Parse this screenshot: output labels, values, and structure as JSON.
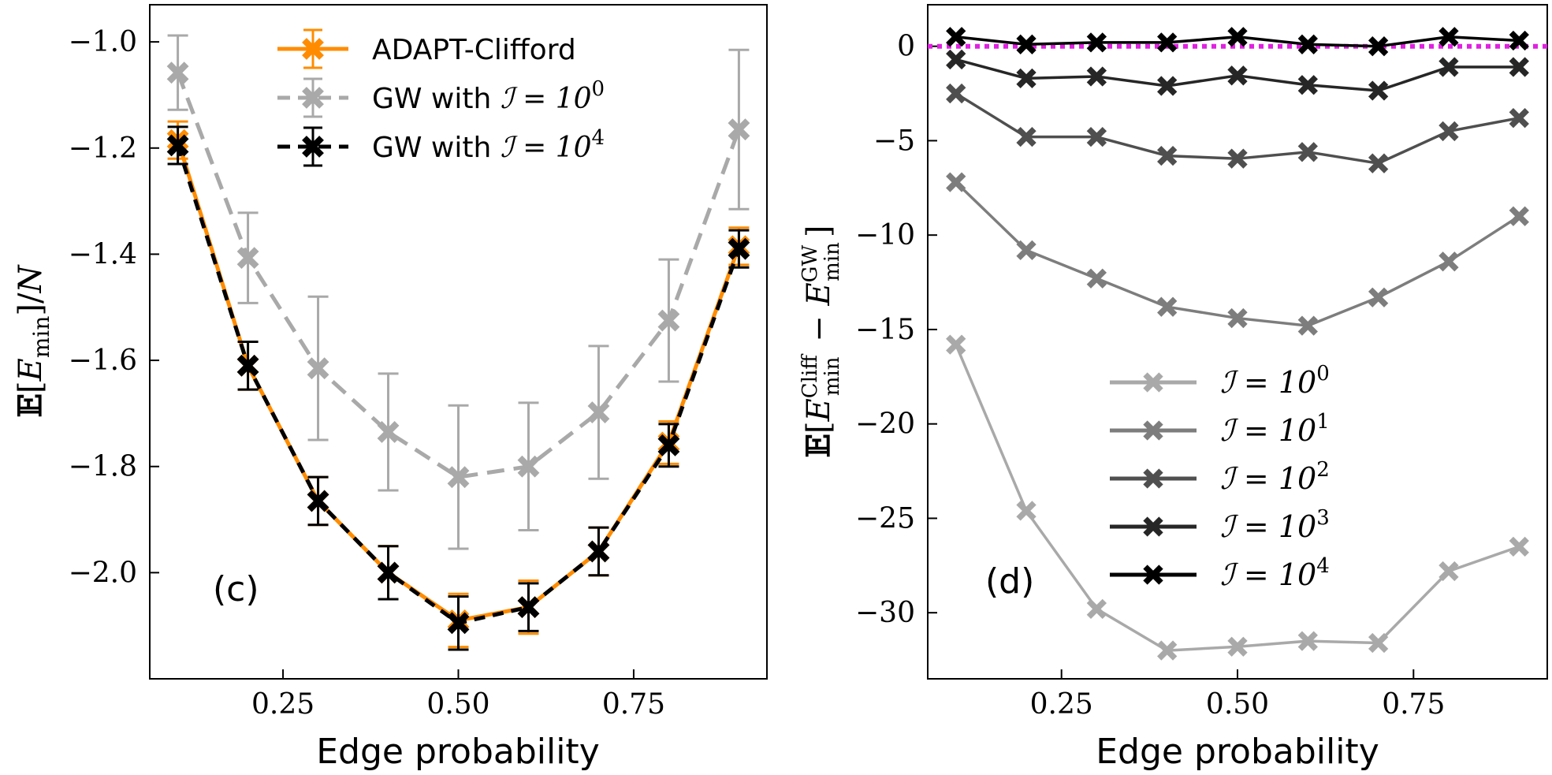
{
  "chart_data": [
    {
      "panel": "(c)",
      "type": "line",
      "xlabel": "Edge probability",
      "ylabel": "𝔼[E_min]/N",
      "xlim": [
        0.06,
        0.94
      ],
      "ylim": [
        -2.2,
        -0.93
      ],
      "xticks": [
        0.25,
        0.5,
        0.75
      ],
      "xtick_labels": [
        "0.25",
        "0.50",
        "0.75"
      ],
      "yticks": [
        -1.0,
        -1.2,
        -1.4,
        -1.6,
        -1.8,
        -2.0
      ],
      "ytick_labels": [
        "−1.0",
        "−1.2",
        "−1.4",
        "−1.6",
        "−1.8",
        "−2.0"
      ],
      "x": [
        0.1,
        0.2,
        0.3,
        0.4,
        0.5,
        0.6,
        0.7,
        0.8,
        0.9
      ],
      "legend_position": "top-center",
      "series": [
        {
          "name": "ADAPT-Clifford",
          "color": "#ff8c00",
          "style": "solid",
          "values": [
            -1.185,
            -1.61,
            -1.865,
            -2.0,
            -2.09,
            -2.065,
            -1.96,
            -1.755,
            -1.385
          ],
          "errors": [
            0.035,
            0.045,
            0.045,
            0.05,
            0.05,
            0.05,
            0.045,
            0.04,
            0.035
          ]
        },
        {
          "name": "GW with ℐ = 10⁰",
          "name_prefix": "GW with ",
          "name_math": "ℐ = 10",
          "name_sup": "0",
          "color": "#a9a9a9",
          "style": "dashed",
          "values": [
            -1.058,
            -1.407,
            -1.615,
            -1.735,
            -1.82,
            -1.8,
            -1.698,
            -1.525,
            -1.165
          ],
          "errors": [
            0.07,
            0.085,
            0.135,
            0.11,
            0.135,
            0.12,
            0.125,
            0.115,
            0.15
          ]
        },
        {
          "name": "GW with ℐ = 10⁴",
          "name_prefix": "GW with ",
          "name_math": "ℐ = 10",
          "name_sup": "4",
          "color": "#000000",
          "style": "dashed",
          "values": [
            -1.195,
            -1.61,
            -1.865,
            -2.0,
            -2.095,
            -2.065,
            -1.96,
            -1.76,
            -1.39
          ],
          "errors": [
            0.035,
            0.045,
            0.045,
            0.05,
            0.05,
            0.045,
            0.045,
            0.04,
            0.035
          ]
        }
      ]
    },
    {
      "panel": "(d)",
      "type": "line",
      "xlabel": "Edge probability",
      "ylabel": "𝔼[E_min^Cliff − E_min^GW]",
      "xlim": [
        0.06,
        0.94
      ],
      "ylim": [
        -33.5,
        2.2
      ],
      "xticks": [
        0.25,
        0.5,
        0.75
      ],
      "xtick_labels": [
        "0.25",
        "0.50",
        "0.75"
      ],
      "yticks": [
        0,
        -5,
        -10,
        -15,
        -20,
        -25,
        -30
      ],
      "ytick_labels": [
        "0",
        "−5",
        "−10",
        "−15",
        "−20",
        "−25",
        "−30"
      ],
      "reference_line": {
        "y": 0,
        "color": "#e020e0",
        "style": "dotted"
      },
      "x": [
        0.1,
        0.2,
        0.3,
        0.4,
        0.5,
        0.6,
        0.7,
        0.8,
        0.9
      ],
      "legend_position": "lower-center",
      "series": [
        {
          "name": "ℐ = 10⁰",
          "name_math": "ℐ = 10",
          "name_sup": "0",
          "color": "#a9a9a9",
          "values": [
            -15.8,
            -24.6,
            -29.8,
            -32.0,
            -31.8,
            -31.5,
            -31.6,
            -27.8,
            -26.5
          ]
        },
        {
          "name": "ℐ = 10¹",
          "name_math": "ℐ = 10",
          "name_sup": "1",
          "color": "#7d7d7d",
          "values": [
            -7.2,
            -10.8,
            -12.3,
            -13.8,
            -14.4,
            -14.8,
            -13.3,
            -11.4,
            -9.0
          ]
        },
        {
          "name": "ℐ = 10²",
          "name_math": "ℐ = 10",
          "name_sup": "2",
          "color": "#4f4f4f",
          "values": [
            -2.5,
            -4.8,
            -4.8,
            -5.8,
            -5.95,
            -5.6,
            -6.2,
            -4.5,
            -3.8
          ]
        },
        {
          "name": "ℐ = 10³",
          "name_math": "ℐ = 10",
          "name_sup": "3",
          "color": "#262626",
          "values": [
            -0.7,
            -1.7,
            -1.6,
            -2.1,
            -1.55,
            -2.05,
            -2.35,
            -1.1,
            -1.1
          ]
        },
        {
          "name": "ℐ = 10⁴",
          "name_math": "ℐ = 10",
          "name_sup": "4",
          "color": "#000000",
          "values": [
            0.5,
            0.1,
            0.2,
            0.2,
            0.5,
            0.1,
            0.0,
            0.5,
            0.3
          ]
        }
      ]
    }
  ]
}
